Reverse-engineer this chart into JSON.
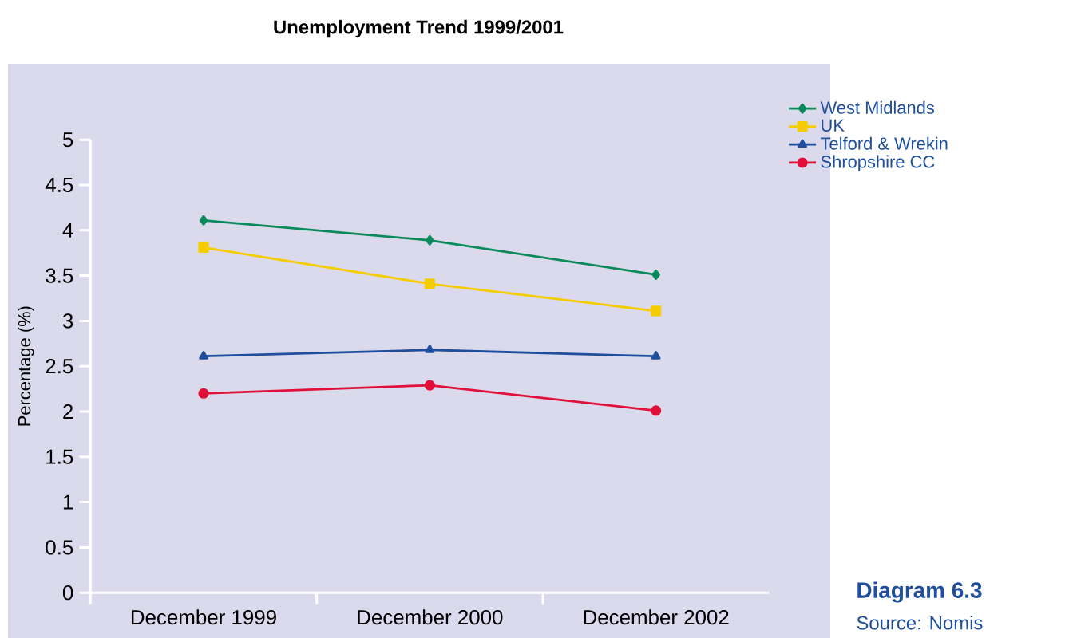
{
  "chart_data": {
    "type": "line",
    "title": "Unemployment Trend 1999/2001",
    "ylabel": "Percentage (%)",
    "categories": [
      "December 1999",
      "December 2000",
      "December 2002"
    ],
    "series": [
      {
        "name": "West Midlands",
        "color": "#0a8a5a",
        "marker": "diamond",
        "values": [
          4.11,
          3.89,
          3.51
        ]
      },
      {
        "name": "UK",
        "color": "#f5cc00",
        "marker": "square",
        "values": [
          3.81,
          3.41,
          3.11
        ]
      },
      {
        "name": "Telford & Wrekin",
        "color": "#1f4e9c",
        "marker": "triangle",
        "values": [
          2.61,
          2.68,
          2.61
        ]
      },
      {
        "name": "Shropshire CC",
        "color": "#e0103a",
        "marker": "circle",
        "values": [
          2.2,
          2.29,
          2.01
        ]
      }
    ],
    "ylim": [
      0,
      5
    ],
    "yticks": [
      0,
      0.5,
      1,
      1.5,
      2,
      2.5,
      3,
      3.5,
      4,
      4.5,
      5
    ],
    "legend": "top right",
    "line_style": "solid",
    "annotations": [
      "Diagram 6.3",
      "Source: Nomis"
    ]
  }
}
